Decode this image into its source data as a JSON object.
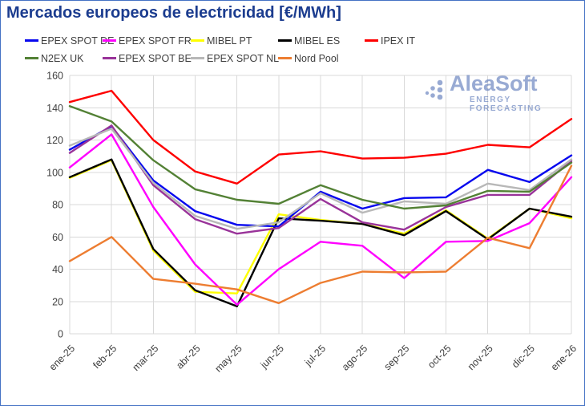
{
  "title": "Mercados europeos de electricidad [€/MWh]",
  "watermark": {
    "name": "AleaSoft",
    "subtitle": "ENERGY FORECASTING"
  },
  "colors": {
    "title_text": "#1b3c8f",
    "axis_text": "#404040",
    "gridline": "#d9d9d9",
    "page_border": "#4472c4",
    "watermark_blue": "#7d9bd0"
  },
  "chart_data": {
    "type": "line",
    "title": "Mercados europeos de electricidad [€/MWh]",
    "xlabel": "",
    "ylabel": "",
    "ylim": [
      0,
      160
    ],
    "ytick_step": 20,
    "grid": true,
    "legend_position": "top",
    "categories": [
      "ene-25",
      "feb-25",
      "mar-25",
      "abr-25",
      "may-25",
      "jun-25",
      "jul-25",
      "ago-25",
      "sep-25",
      "oct-25",
      "nov-25",
      "dic-25",
      "ene-26"
    ],
    "series": [
      {
        "name": "EPEX SPOT DE",
        "color": "#0707ee",
        "values": [
          114,
          128.5,
          95,
          76,
          67.5,
          66.5,
          88,
          77.5,
          84,
          84.5,
          101.5,
          94,
          110.5
        ]
      },
      {
        "name": "EPEX SPOT FR",
        "color": "#ff00ff",
        "values": [
          103,
          123.5,
          78.5,
          43,
          18,
          40,
          57,
          54.5,
          34.5,
          57,
          57.5,
          68.5,
          97
        ]
      },
      {
        "name": "MIBEL PT",
        "color": "#ffff00",
        "values": [
          96.5,
          107.5,
          51.5,
          26,
          25,
          74,
          70.5,
          68,
          62,
          76.5,
          59,
          77.5,
          71.5
        ]
      },
      {
        "name": "MIBEL ES",
        "color": "#000000",
        "values": [
          97,
          108,
          52.5,
          27,
          17,
          71.5,
          70,
          68,
          61,
          76,
          58.5,
          77.5,
          72.5
        ]
      },
      {
        "name": "IPEX IT",
        "color": "#fe0000",
        "values": [
          143.5,
          150.5,
          120,
          100.5,
          93,
          111,
          113,
          108.5,
          109,
          111.5,
          117,
          115.5,
          133
        ]
      },
      {
        "name": "N2EX UK",
        "color": "#538135",
        "values": [
          141,
          131.5,
          107.5,
          89.5,
          83,
          80.5,
          92,
          83,
          77.5,
          79.5,
          88.5,
          88,
          106
        ]
      },
      {
        "name": "EPEX SPOT BE",
        "color": "#993399",
        "values": [
          112,
          129,
          92,
          71,
          62,
          65.5,
          83.5,
          69,
          64.5,
          78.5,
          86,
          86,
          107
        ]
      },
      {
        "name": "EPEX SPOT NL",
        "color": "#b8b8b8",
        "values": [
          116.5,
          127,
          93.5,
          73,
          65,
          69,
          87,
          75,
          82,
          80.5,
          93,
          89,
          108
        ]
      },
      {
        "name": "Nord Pool",
        "color": "#ed7d31",
        "values": [
          45,
          60,
          34,
          31,
          27.5,
          19,
          31.5,
          38.5,
          38,
          38.5,
          59.5,
          53,
          104
        ]
      }
    ]
  }
}
